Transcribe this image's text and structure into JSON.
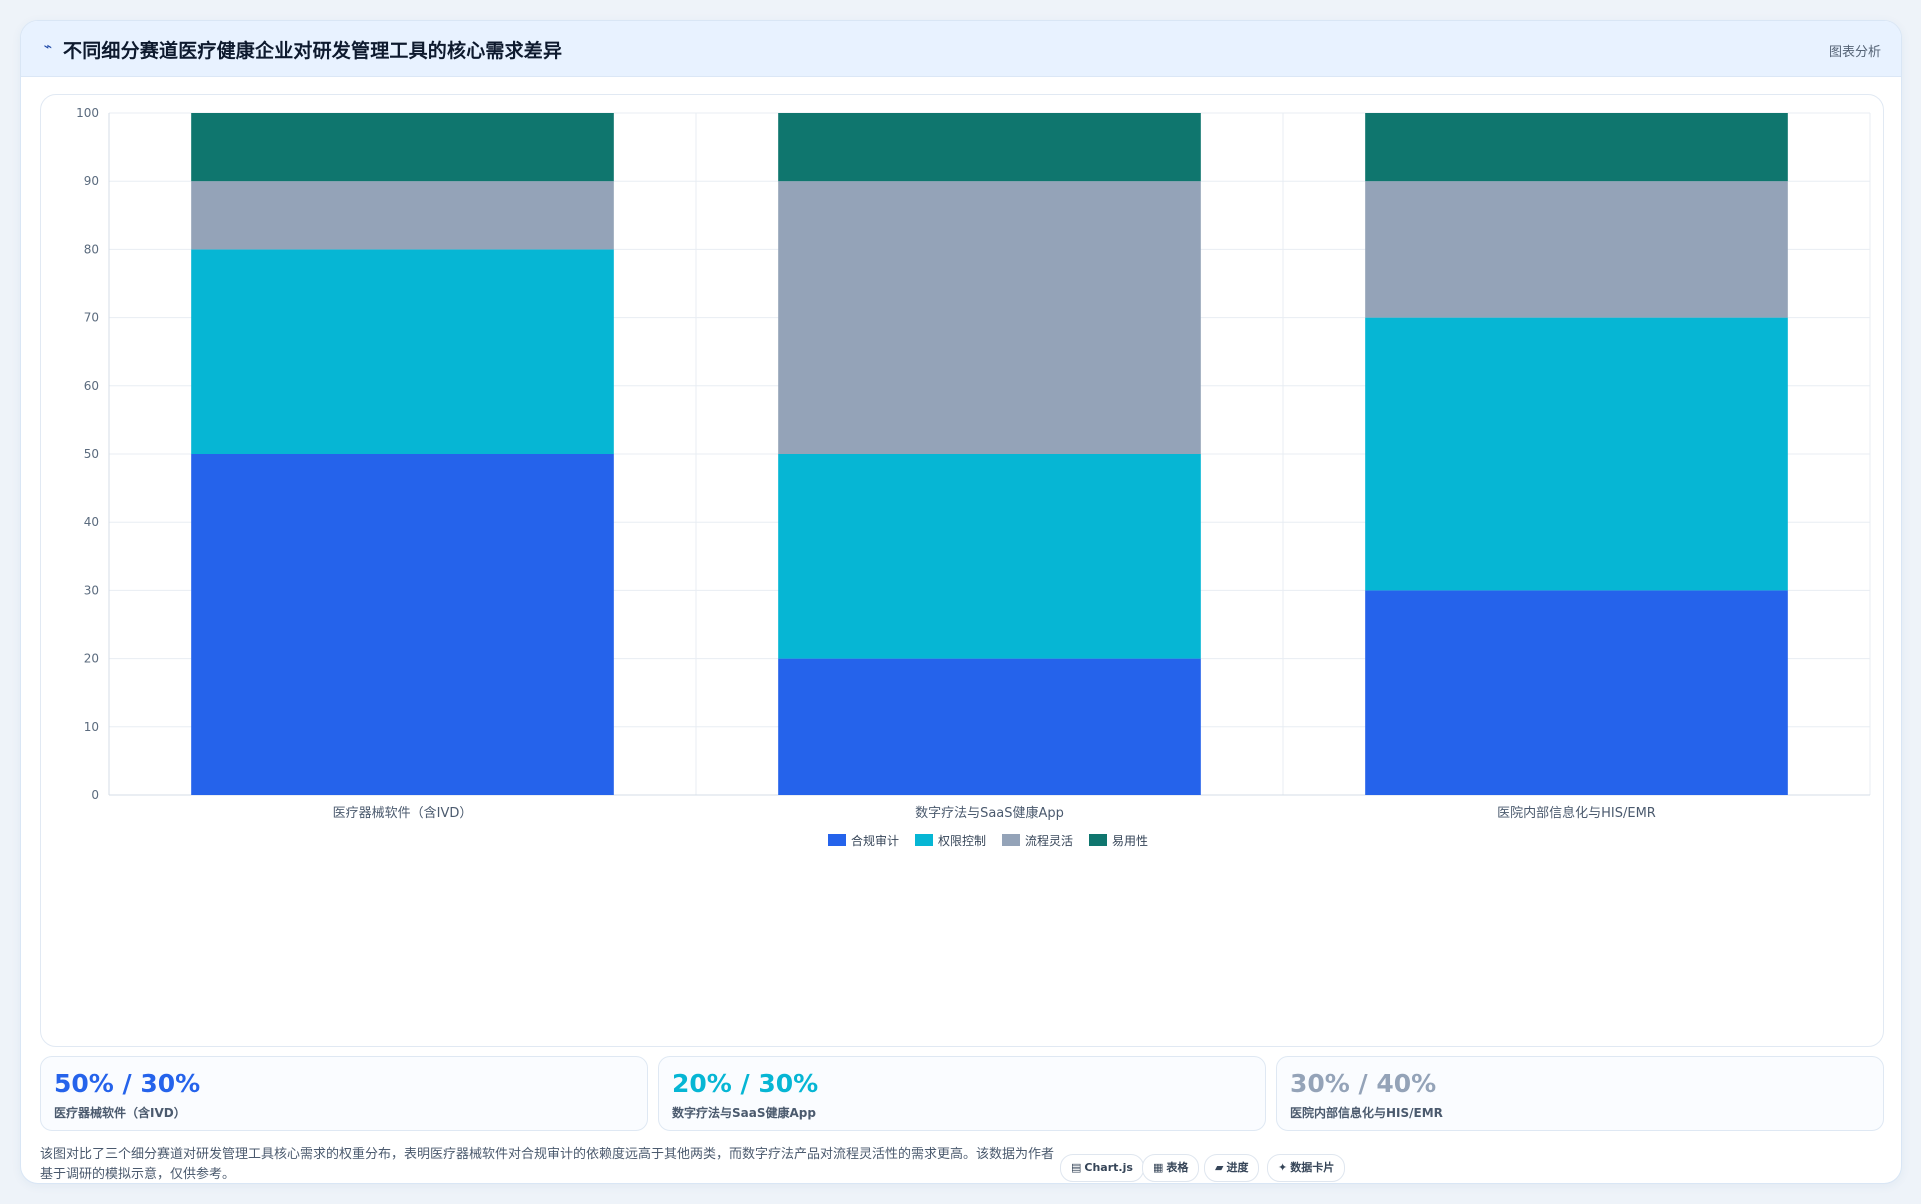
{
  "header": {
    "title": "不同细分赛道医疗健康企业对研发管理工具的核心需求差异",
    "icon": "chart-line-icon",
    "action_label": "图表分析"
  },
  "chart_data": {
    "type": "bar",
    "stacked": true,
    "categories": [
      "医疗器械软件（含IVD）",
      "数字疗法与SaaS健康App",
      "医院内部信息化与HIS/EMR"
    ],
    "series": [
      {
        "name": "合规审计",
        "color": "#2563eb",
        "values": [
          50,
          20,
          30
        ]
      },
      {
        "name": "权限控制",
        "color": "#06b6d4",
        "values": [
          30,
          30,
          40
        ]
      },
      {
        "name": "流程灵活",
        "color": "#94a3b8",
        "values": [
          10,
          40,
          20
        ]
      },
      {
        "name": "易用性",
        "color": "#0f766e",
        "values": [
          10,
          10,
          10
        ]
      }
    ],
    "yticks": [
      0,
      10,
      20,
      30,
      40,
      50,
      60,
      70,
      80,
      90,
      100
    ],
    "ylim": [
      0,
      100
    ],
    "grid": true,
    "legend_position": "bottom-center"
  },
  "stats": [
    {
      "value": "50% / 30%",
      "label": "医疗器械软件（含IVD）",
      "color": "#2563eb"
    },
    {
      "value": "20% / 30%",
      "label": "数字疗法与SaaS健康App",
      "color": "#06b6d4"
    },
    {
      "value": "30% / 40%",
      "label": "医院内部信息化与HIS/EMR",
      "color": "#94a3b8"
    }
  ],
  "footnote": "该图对比了三个细分赛道对研发管理工具核心需求的权重分布，表明医疗器械软件对合规审计的依赖度远高于其他两类，而数字疗法产品对流程灵活性的需求更高。该数据为作者基于调研的模拟示意，仅供参考。",
  "tags": [
    {
      "icon": "chart-icon",
      "glyph": "▤",
      "label": "Chart.js"
    },
    {
      "icon": "table-icon",
      "glyph": "▦",
      "label": "表格"
    },
    {
      "icon": "progress-icon",
      "glyph": "▰",
      "label": "进度"
    },
    {
      "icon": "sparkle-icon",
      "glyph": "✦",
      "label": "数据卡片"
    }
  ]
}
